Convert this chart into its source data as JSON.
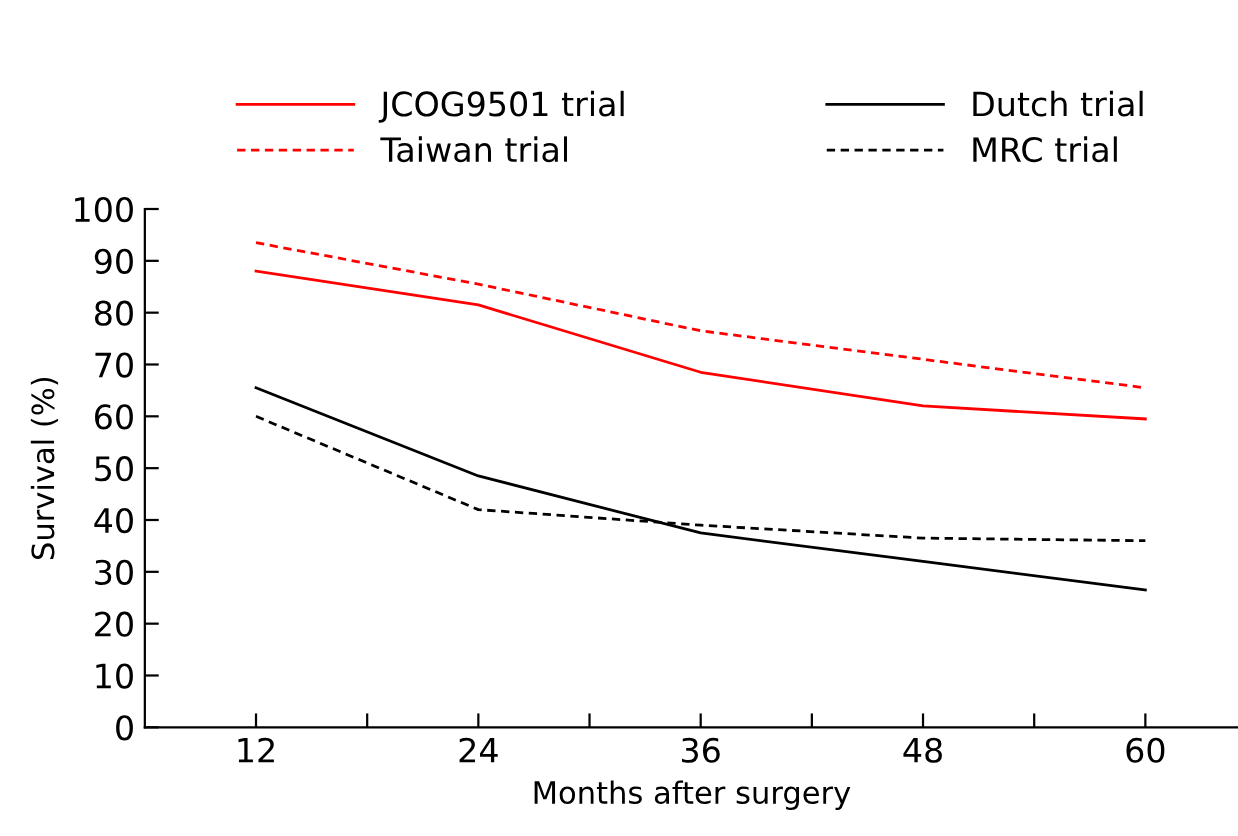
{
  "chart_data": {
    "type": "line",
    "xlabel": "Months after surgery",
    "ylabel": "Survival (%)",
    "x": [
      12,
      24,
      36,
      48,
      60
    ],
    "series": [
      {
        "name": "JCOG9501 trial",
        "color": "#ff0000",
        "line_style": "solid",
        "values": [
          88,
          81.5,
          68.5,
          62,
          59.5
        ]
      },
      {
        "name": "Taiwan trial",
        "color": "#ff0000",
        "line_style": "dashed",
        "values": [
          93.5,
          85.5,
          76.5,
          71,
          65.5
        ]
      },
      {
        "name": "Dutch trial",
        "color": "#000000",
        "line_style": "solid",
        "values": [
          65.5,
          48.5,
          37.5,
          32,
          26.5
        ]
      },
      {
        "name": "MRC trial",
        "color": "#000000",
        "line_style": "dashed",
        "values": [
          60,
          42,
          39,
          36.5,
          36
        ]
      }
    ],
    "xlim": [
      6,
      65
    ],
    "ylim": [
      0,
      100
    ],
    "xticks": [
      12,
      {
        "value": 18,
        "label": null
      },
      24,
      {
        "value": 30,
        "label": null
      },
      36,
      {
        "value": 42,
        "label": null
      },
      48,
      {
        "value": 54,
        "label": null
      },
      60
    ],
    "yticks": [
      0,
      10,
      20,
      30,
      40,
      50,
      60,
      70,
      80,
      90,
      100
    ],
    "grid": false,
    "legend": "top",
    "marker": "none"
  }
}
